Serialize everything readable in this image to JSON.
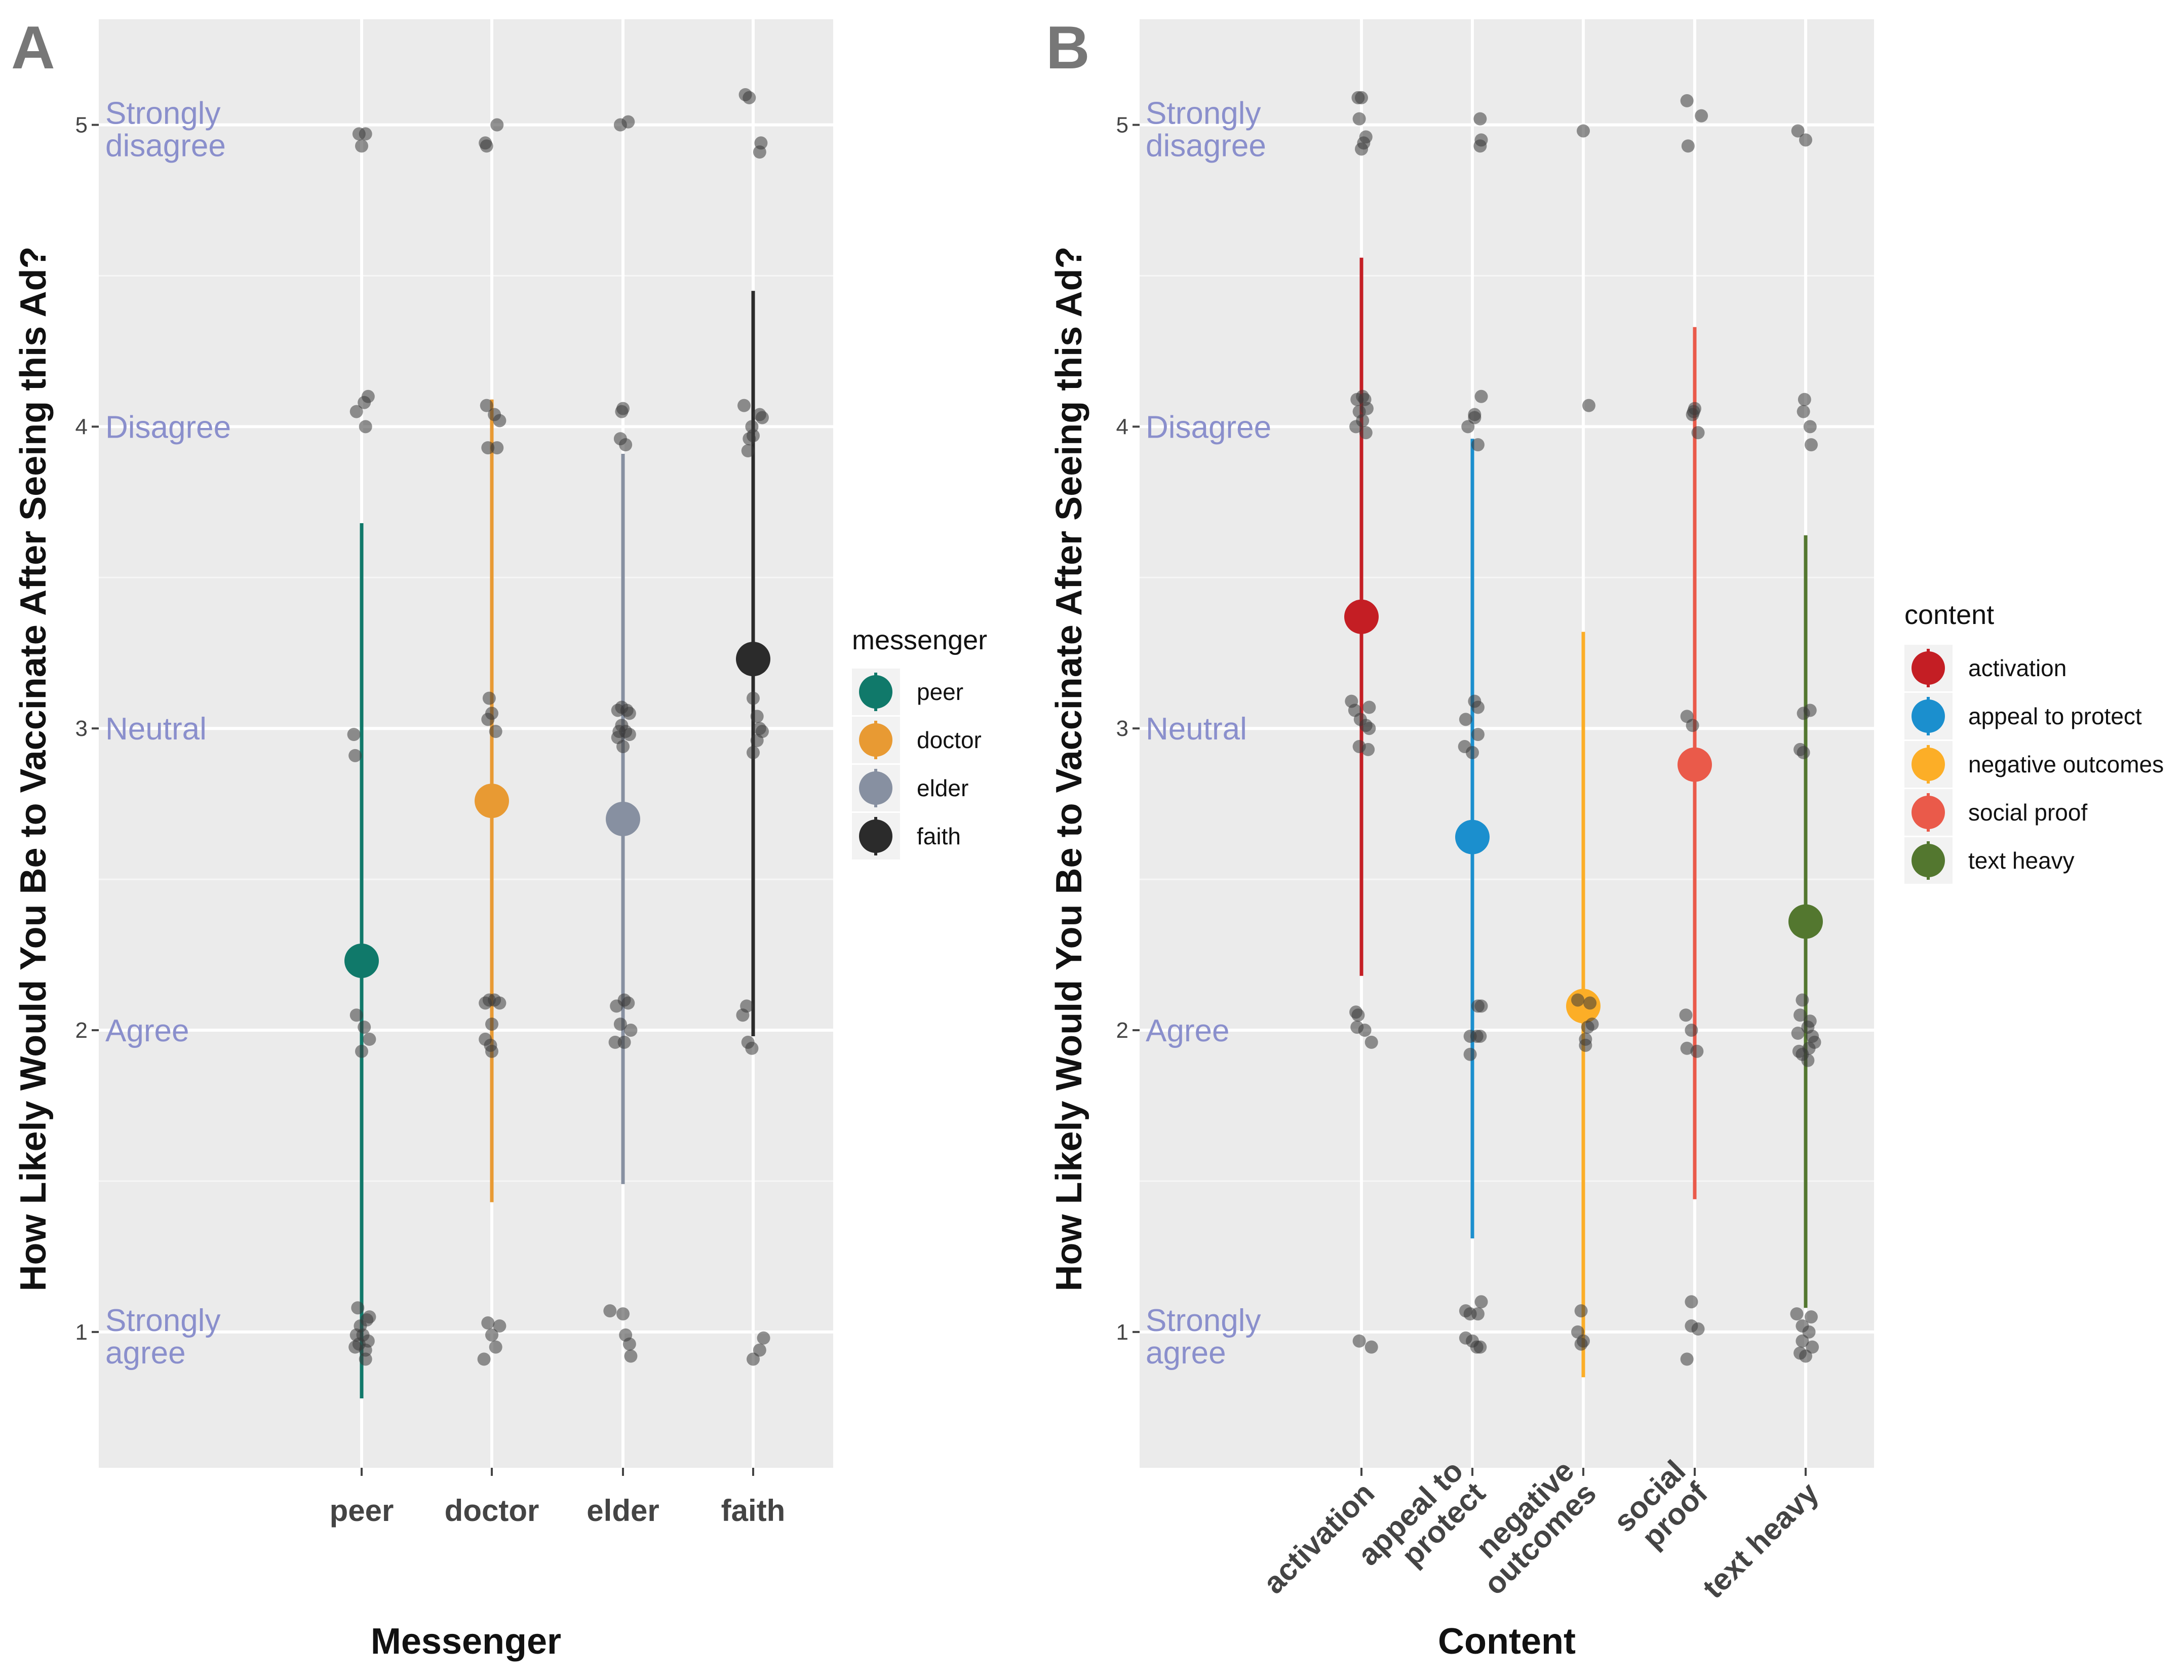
{
  "chart_data": [
    {
      "panel": "A",
      "type": "scatter",
      "xlabel": "Messenger",
      "ylabel": "How Likely Would You Be to Vaccinate After Seeing this Ad?",
      "ylim": [
        0.55,
        5.35
      ],
      "yticks": [
        1,
        2,
        3,
        4,
        5
      ],
      "grid": true,
      "y_annotations": [
        {
          "y": 5,
          "lines": [
            "Strongly",
            "disagree"
          ]
        },
        {
          "y": 4,
          "lines": [
            "Disagree"
          ]
        },
        {
          "y": 3,
          "lines": [
            "Neutral"
          ]
        },
        {
          "y": 2,
          "lines": [
            "Agree"
          ]
        },
        {
          "y": 1,
          "lines": [
            "Strongly",
            "agree"
          ]
        }
      ],
      "categories": [
        {
          "label": [
            "peer"
          ]
        },
        {
          "label": [
            "doctor"
          ]
        },
        {
          "label": [
            "elder"
          ]
        },
        {
          "label": [
            "faith"
          ]
        }
      ],
      "legend": {
        "title": "messenger",
        "position": "right"
      },
      "series": [
        {
          "name": "peer",
          "color": "#10796a",
          "mean": 2.23,
          "lo": 0.78,
          "hi": 3.68,
          "points": [
            [
              -0.02,
              4.97
            ],
            [
              0.03,
              4.97
            ],
            [
              0.0,
              4.93
            ],
            [
              -0.04,
              4.05
            ],
            [
              0.02,
              4.08
            ],
            [
              0.05,
              4.1
            ],
            [
              0.03,
              4.0
            ],
            [
              -0.06,
              2.98
            ],
            [
              -0.05,
              2.91
            ],
            [
              -0.04,
              2.05
            ],
            [
              0.02,
              2.01
            ],
            [
              0.06,
              1.97
            ],
            [
              0.0,
              1.93
            ],
            [
              -0.03,
              1.08
            ],
            [
              -0.01,
              1.02
            ],
            [
              0.04,
              1.04
            ],
            [
              0.06,
              1.05
            ],
            [
              0.01,
              0.99
            ],
            [
              -0.05,
              0.95
            ],
            [
              -0.02,
              0.96
            ],
            [
              0.03,
              0.94
            ],
            [
              0.05,
              0.97
            ],
            [
              0.03,
              0.91
            ],
            [
              -0.04,
              0.99
            ]
          ]
        },
        {
          "name": "doctor",
          "color": "#e89a33",
          "mean": 2.76,
          "lo": 1.43,
          "hi": 4.09,
          "points": [
            [
              -0.05,
              4.94
            ],
            [
              -0.04,
              4.93
            ],
            [
              0.04,
              5.0
            ],
            [
              -0.04,
              4.07
            ],
            [
              0.02,
              4.04
            ],
            [
              0.06,
              4.02
            ],
            [
              -0.03,
              3.93
            ],
            [
              0.04,
              3.93
            ],
            [
              -0.02,
              3.1
            ],
            [
              0.0,
              3.05
            ],
            [
              -0.03,
              3.03
            ],
            [
              0.03,
              2.99
            ],
            [
              -0.05,
              2.09
            ],
            [
              -0.02,
              2.1
            ],
            [
              0.02,
              2.1
            ],
            [
              0.06,
              2.09
            ],
            [
              0.0,
              2.02
            ],
            [
              -0.05,
              1.97
            ],
            [
              -0.01,
              1.95
            ],
            [
              0.0,
              1.93
            ],
            [
              -0.03,
              1.03
            ],
            [
              0.0,
              0.99
            ],
            [
              0.06,
              1.02
            ],
            [
              0.03,
              0.95
            ],
            [
              -0.06,
              0.91
            ]
          ]
        },
        {
          "name": "elder",
          "color": "#8790a1",
          "mean": 2.7,
          "lo": 1.49,
          "hi": 3.91,
          "points": [
            [
              -0.02,
              5.0
            ],
            [
              0.04,
              5.01
            ],
            [
              -0.01,
              4.05
            ],
            [
              0.0,
              4.06
            ],
            [
              -0.02,
              3.96
            ],
            [
              0.02,
              3.94
            ],
            [
              -0.04,
              3.06
            ],
            [
              -0.01,
              3.07
            ],
            [
              0.03,
              3.06
            ],
            [
              0.05,
              3.05
            ],
            [
              -0.01,
              3.01
            ],
            [
              -0.03,
              2.99
            ],
            [
              0.02,
              2.99
            ],
            [
              0.05,
              2.98
            ],
            [
              -0.04,
              2.97
            ],
            [
              0.0,
              2.94
            ],
            [
              -0.05,
              2.08
            ],
            [
              0.01,
              2.1
            ],
            [
              0.04,
              2.09
            ],
            [
              -0.02,
              2.02
            ],
            [
              0.06,
              2.0
            ],
            [
              -0.06,
              1.96
            ],
            [
              0.01,
              1.96
            ],
            [
              -0.1,
              1.07
            ],
            [
              0.0,
              1.06
            ],
            [
              0.02,
              0.99
            ],
            [
              0.05,
              0.96
            ],
            [
              0.06,
              0.92
            ]
          ]
        },
        {
          "name": "faith",
          "color": "#2b2b2b",
          "mean": 3.23,
          "lo": 1.98,
          "hi": 4.45,
          "points": [
            [
              -0.06,
              5.1
            ],
            [
              -0.03,
              5.09
            ],
            [
              0.06,
              4.94
            ],
            [
              0.05,
              4.91
            ],
            [
              -0.07,
              4.07
            ],
            [
              0.05,
              4.04
            ],
            [
              0.07,
              4.03
            ],
            [
              -0.01,
              4.0
            ],
            [
              -0.03,
              3.96
            ],
            [
              0.0,
              3.97
            ],
            [
              -0.04,
              3.92
            ],
            [
              0.0,
              3.1
            ],
            [
              0.03,
              3.04
            ],
            [
              0.05,
              3.0
            ],
            [
              0.07,
              2.99
            ],
            [
              0.03,
              2.96
            ],
            [
              0.0,
              2.92
            ],
            [
              -0.08,
              2.05
            ],
            [
              -0.05,
              2.08
            ],
            [
              -0.04,
              1.96
            ],
            [
              -0.01,
              1.94
            ],
            [
              0.08,
              0.98
            ],
            [
              0.05,
              0.94
            ],
            [
              0.0,
              0.91
            ]
          ]
        }
      ]
    },
    {
      "panel": "B",
      "type": "scatter",
      "xlabel": "Content",
      "ylabel": "How Likely Would You Be to Vaccinate After Seeing this Ad?",
      "ylim": [
        0.55,
        5.35
      ],
      "yticks": [
        1,
        2,
        3,
        4,
        5
      ],
      "grid": true,
      "y_annotations": [
        {
          "y": 5,
          "lines": [
            "Strongly",
            "disagree"
          ]
        },
        {
          "y": 4,
          "lines": [
            "Disagree"
          ]
        },
        {
          "y": 3,
          "lines": [
            "Neutral"
          ]
        },
        {
          "y": 2,
          "lines": [
            "Agree"
          ]
        },
        {
          "y": 1,
          "lines": [
            "Strongly",
            "agree"
          ]
        }
      ],
      "categories": [
        {
          "label": [
            "activation"
          ]
        },
        {
          "label": [
            "appeal to",
            "protect"
          ]
        },
        {
          "label": [
            "negative",
            "outcomes"
          ]
        },
        {
          "label": [
            "social",
            "proof"
          ]
        },
        {
          "label": [
            "text heavy"
          ]
        }
      ],
      "legend": {
        "title": "content",
        "position": "right"
      },
      "series": [
        {
          "name": "activation",
          "color": "#c41e24",
          "mean": 3.37,
          "lo": 2.18,
          "hi": 4.56,
          "points": [
            [
              -0.03,
              5.09
            ],
            [
              0.0,
              5.09
            ],
            [
              -0.02,
              5.02
            ],
            [
              0.04,
              4.96
            ],
            [
              0.02,
              4.94
            ],
            [
              0.0,
              4.92
            ],
            [
              -0.04,
              4.09
            ],
            [
              0.01,
              4.1
            ],
            [
              0.03,
              4.09
            ],
            [
              0.05,
              4.06
            ],
            [
              -0.02,
              4.05
            ],
            [
              0.01,
              4.02
            ],
            [
              -0.05,
              4.0
            ],
            [
              0.04,
              3.98
            ],
            [
              -0.09,
              3.09
            ],
            [
              -0.06,
              3.06
            ],
            [
              0.07,
              3.07
            ],
            [
              -0.01,
              3.03
            ],
            [
              0.04,
              3.01
            ],
            [
              0.07,
              3.0
            ],
            [
              -0.02,
              2.94
            ],
            [
              0.06,
              2.93
            ],
            [
              -0.05,
              2.06
            ],
            [
              -0.03,
              2.05
            ],
            [
              -0.04,
              2.01
            ],
            [
              0.03,
              2.0
            ],
            [
              0.09,
              1.96
            ],
            [
              -0.02,
              0.97
            ],
            [
              0.09,
              0.95
            ]
          ]
        },
        {
          "name": "appeal to protect",
          "color": "#1b8fce",
          "mean": 2.64,
          "lo": 1.31,
          "hi": 3.96,
          "points": [
            [
              0.07,
              5.02
            ],
            [
              0.08,
              4.95
            ],
            [
              0.07,
              4.93
            ],
            [
              0.08,
              4.1
            ],
            [
              0.02,
              4.03
            ],
            [
              -0.04,
              4.0
            ],
            [
              0.02,
              4.04
            ],
            [
              0.05,
              3.94
            ],
            [
              0.02,
              3.09
            ],
            [
              0.05,
              3.07
            ],
            [
              -0.06,
              3.03
            ],
            [
              0.05,
              2.98
            ],
            [
              -0.07,
              2.94
            ],
            [
              0.0,
              2.92
            ],
            [
              0.05,
              2.08
            ],
            [
              0.08,
              2.08
            ],
            [
              -0.02,
              1.98
            ],
            [
              0.04,
              1.98
            ],
            [
              0.07,
              1.98
            ],
            [
              -0.02,
              1.92
            ],
            [
              -0.06,
              1.07
            ],
            [
              -0.02,
              1.06
            ],
            [
              0.05,
              1.06
            ],
            [
              0.08,
              1.1
            ],
            [
              -0.06,
              0.98
            ],
            [
              0.0,
              0.97
            ],
            [
              0.07,
              0.95
            ],
            [
              0.04,
              0.95
            ]
          ]
        },
        {
          "name": "negative outcomes",
          "color": "#fcae27",
          "mean": 2.08,
          "lo": 0.85,
          "hi": 3.32,
          "points": [
            [
              0.0,
              4.98
            ],
            [
              0.05,
              4.07
            ],
            [
              -0.05,
              2.1
            ],
            [
              0.06,
              2.09
            ],
            [
              0.08,
              2.02
            ],
            [
              0.04,
              2.01
            ],
            [
              0.02,
              1.97
            ],
            [
              0.02,
              1.95
            ],
            [
              -0.02,
              1.07
            ],
            [
              -0.05,
              1.0
            ],
            [
              0.0,
              0.97
            ],
            [
              -0.02,
              0.96
            ]
          ]
        },
        {
          "name": "social proof",
          "color": "#ea5a4a",
          "mean": 2.88,
          "lo": 1.44,
          "hi": 4.33,
          "points": [
            [
              -0.07,
              5.08
            ],
            [
              0.06,
              5.03
            ],
            [
              -0.06,
              4.93
            ],
            [
              -0.01,
              4.05
            ],
            [
              0.0,
              4.06
            ],
            [
              -0.02,
              4.04
            ],
            [
              0.03,
              3.98
            ],
            [
              -0.07,
              3.04
            ],
            [
              -0.02,
              3.01
            ],
            [
              -0.08,
              2.05
            ],
            [
              -0.03,
              2.0
            ],
            [
              0.02,
              1.93
            ],
            [
              -0.07,
              1.94
            ],
            [
              -0.03,
              1.1
            ],
            [
              -0.03,
              1.02
            ],
            [
              0.03,
              1.01
            ],
            [
              -0.07,
              0.91
            ]
          ]
        },
        {
          "name": "text heavy",
          "color": "#53772f",
          "mean": 2.36,
          "lo": 1.08,
          "hi": 3.64,
          "points": [
            [
              -0.07,
              4.98
            ],
            [
              0.0,
              4.95
            ],
            [
              -0.01,
              4.09
            ],
            [
              -0.02,
              4.05
            ],
            [
              0.04,
              4.0
            ],
            [
              0.05,
              3.94
            ],
            [
              -0.02,
              3.05
            ],
            [
              0.04,
              3.06
            ],
            [
              -0.05,
              2.93
            ],
            [
              -0.02,
              2.92
            ],
            [
              -0.03,
              2.1
            ],
            [
              -0.05,
              2.05
            ],
            [
              0.04,
              2.03
            ],
            [
              0.02,
              2.01
            ],
            [
              -0.07,
              1.99
            ],
            [
              0.06,
              1.98
            ],
            [
              0.08,
              1.96
            ],
            [
              0.03,
              1.94
            ],
            [
              -0.06,
              1.93
            ],
            [
              -0.03,
              1.92
            ],
            [
              0.02,
              1.9
            ],
            [
              -0.08,
              1.06
            ],
            [
              0.05,
              1.05
            ],
            [
              -0.03,
              1.02
            ],
            [
              0.03,
              1.0
            ],
            [
              -0.03,
              0.97
            ],
            [
              0.06,
              0.95
            ],
            [
              -0.05,
              0.93
            ],
            [
              0.0,
              0.92
            ]
          ]
        }
      ]
    }
  ]
}
